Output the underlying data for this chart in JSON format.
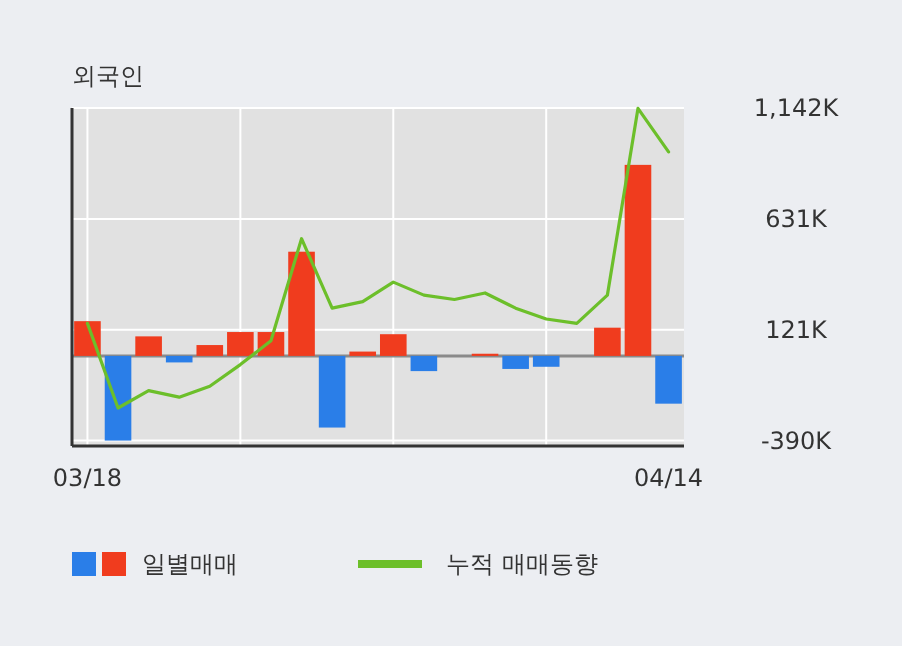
{
  "chart_data": {
    "type": "bar",
    "title": "외국인",
    "categories": [
      "03/18",
      null,
      null,
      null,
      null,
      null,
      null,
      null,
      null,
      null,
      null,
      null,
      null,
      null,
      null,
      null,
      null,
      null,
      null,
      "04/14"
    ],
    "series": [
      {
        "name": "일별매매",
        "colors": [
          "#f03c1e",
          "#2a7ee8",
          "#f03c1e",
          "#2a7ee8",
          "#f03c1e",
          "#f03c1e",
          "#f03c1e",
          "#f03c1e",
          "#2a7ee8",
          "#f03c1e",
          "#f03c1e",
          "#2a7ee8",
          "#f03c1e",
          "#f03c1e",
          "#2a7ee8",
          "#2a7ee8",
          "#f03c1e",
          "#f03c1e",
          "#f03c1e",
          "#2a7ee8"
        ],
        "values": [
          160,
          -390,
          90,
          -30,
          50,
          110,
          110,
          480,
          -330,
          20,
          100,
          -70,
          0,
          10,
          -60,
          -50,
          0,
          130,
          880,
          -220
        ]
      },
      {
        "name": "누적 매매동향",
        "type": "line",
        "color": "#6cbf2a",
        "values": [
          150,
          -240,
          -160,
          -190,
          -140,
          -40,
          70,
          540,
          220,
          250,
          340,
          280,
          260,
          290,
          220,
          170,
          150,
          280,
          1140,
          940
        ]
      }
    ],
    "ylim": [
      -415,
      1142
    ],
    "yticks": [
      {
        "value": 1142,
        "label": "1,142K"
      },
      {
        "value": 631,
        "label": "631K"
      },
      {
        "value": 121,
        "label": "121K"
      },
      {
        "value": -390,
        "label": "-390K"
      }
    ],
    "grid": true,
    "legend": "bottom"
  }
}
